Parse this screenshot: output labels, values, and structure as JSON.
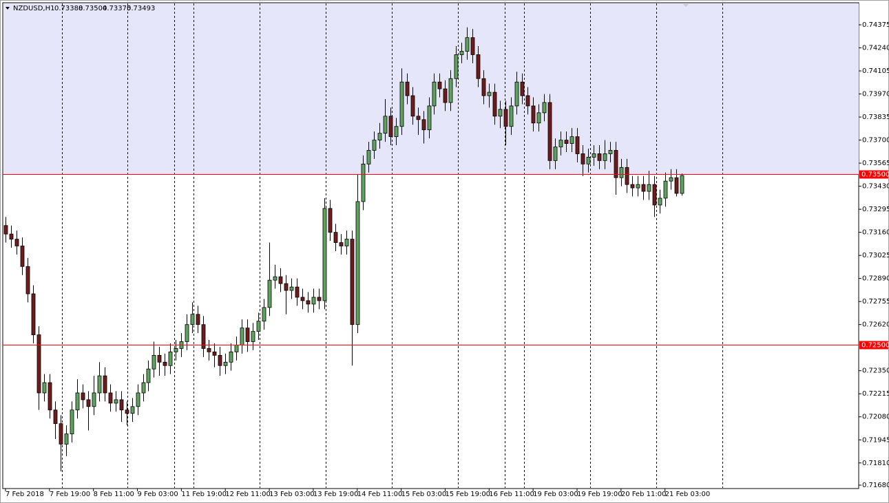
{
  "chart_data": {
    "type": "candlestick",
    "symbol": "NZDUSD,H1",
    "open": [
      0.732,
      0.7315,
      0.7312,
      0.7308,
      0.7296,
      0.728,
      0.7256,
      0.7222,
      0.7228,
      0.7212,
      0.7204,
      0.7192,
      0.7198,
      0.7212,
      0.7222,
      0.7218,
      0.7214,
      0.7222,
      0.7232,
      0.7222,
      0.7216,
      0.7218,
      0.7212,
      0.721,
      0.7214,
      0.7222,
      0.7228,
      0.7236,
      0.7244,
      0.724,
      0.7238,
      0.7246,
      0.7248,
      0.7252,
      0.7262,
      0.7268,
      0.7262,
      0.7248,
      0.7246,
      0.7244,
      0.7238,
      0.724,
      0.7246,
      0.725,
      0.726,
      0.7252,
      0.7258,
      0.7264,
      0.7272,
      0.7288,
      0.729,
      0.7286,
      0.7282,
      0.7284,
      0.7278,
      0.7276,
      0.7274,
      0.7278,
      0.7276,
      0.733,
      0.7316,
      0.731,
      0.7308,
      0.7312,
      0.7262,
      0.7334,
      0.7356,
      0.7364,
      0.737,
      0.7374,
      0.7384,
      0.7372,
      0.7378,
      0.7404,
      0.7396,
      0.7384,
      0.7382,
      0.7376,
      0.739,
      0.7404,
      0.74,
      0.7392,
      0.7406,
      0.742,
      0.7422,
      0.743,
      0.742,
      0.7406,
      0.7396,
      0.7398,
      0.7384,
      0.7388,
      0.7378,
      0.739,
      0.7404,
      0.7396,
      0.739,
      0.738,
      0.7386,
      0.7392,
      0.7358,
      0.7366,
      0.737,
      0.7368,
      0.7372,
      0.7362,
      0.7356,
      0.736,
      0.7362,
      0.7358,
      0.7362,
      0.7364,
      0.7348,
      0.7354,
      0.7344,
      0.7342,
      0.7344,
      0.734,
      0.7344,
      0.7332,
      0.7336,
      0.7346,
      0.7348,
      0.73388
    ],
    "high": [
      0.7325,
      0.732,
      0.7317,
      0.7313,
      0.7301,
      0.7285,
      0.7261,
      0.7233,
      0.7233,
      0.7217,
      0.7209,
      0.7203,
      0.7217,
      0.723,
      0.7227,
      0.7223,
      0.7232,
      0.724,
      0.7237,
      0.7227,
      0.7223,
      0.7223,
      0.7217,
      0.7219,
      0.7227,
      0.7233,
      0.7241,
      0.7252,
      0.7249,
      0.7245,
      0.7251,
      0.7253,
      0.7257,
      0.7268,
      0.7275,
      0.7273,
      0.7267,
      0.7253,
      0.7251,
      0.7249,
      0.7245,
      0.7251,
      0.7255,
      0.7265,
      0.7265,
      0.7263,
      0.7269,
      0.7277,
      0.731,
      0.7297,
      0.7295,
      0.7291,
      0.7289,
      0.7289,
      0.7283,
      0.7281,
      0.7283,
      0.7283,
      0.7336,
      0.7335,
      0.7321,
      0.7315,
      0.7317,
      0.7317,
      0.735,
      0.7361,
      0.7369,
      0.7375,
      0.738,
      0.7394,
      0.7389,
      0.7383,
      0.7412,
      0.7409,
      0.7401,
      0.7389,
      0.7387,
      0.7395,
      0.7409,
      0.7409,
      0.7405,
      0.7411,
      0.7425,
      0.7427,
      0.7436,
      0.7435,
      0.7425,
      0.7411,
      0.7403,
      0.7403,
      0.7393,
      0.7393,
      0.7395,
      0.741,
      0.7409,
      0.7401,
      0.7395,
      0.7391,
      0.7397,
      0.7397,
      0.7371,
      0.7375,
      0.7375,
      0.7377,
      0.7377,
      0.7367,
      0.7365,
      0.7367,
      0.7367,
      0.737,
      0.7369,
      0.7369,
      0.7359,
      0.7359,
      0.7349,
      0.7349,
      0.7349,
      0.7352,
      0.7349,
      0.7341,
      0.7351,
      0.7353,
      0.7353,
      0.73504
    ],
    "low": [
      0.731,
      0.7307,
      0.7303,
      0.7291,
      0.7275,
      0.7251,
      0.7212,
      0.7217,
      0.7207,
      0.7195,
      0.7176,
      0.7185,
      0.7193,
      0.7207,
      0.7213,
      0.72,
      0.7209,
      0.7217,
      0.7217,
      0.7211,
      0.7211,
      0.7205,
      0.7203,
      0.7205,
      0.7209,
      0.7217,
      0.7223,
      0.7231,
      0.7232,
      0.7232,
      0.7233,
      0.7241,
      0.7243,
      0.7247,
      0.7257,
      0.7257,
      0.7243,
      0.7241,
      0.7237,
      0.7232,
      0.7233,
      0.7235,
      0.7241,
      0.7245,
      0.7246,
      0.7247,
      0.7253,
      0.7259,
      0.7267,
      0.7283,
      0.7281,
      0.7268,
      0.7277,
      0.7273,
      0.7271,
      0.7269,
      0.7269,
      0.7271,
      0.7271,
      0.7311,
      0.7305,
      0.7303,
      0.7303,
      0.7238,
      0.7257,
      0.7329,
      0.7351,
      0.7359,
      0.7365,
      0.7369,
      0.7367,
      0.7367,
      0.7373,
      0.7391,
      0.7379,
      0.7373,
      0.7368,
      0.7371,
      0.7385,
      0.7395,
      0.7387,
      0.7387,
      0.7401,
      0.7415,
      0.7417,
      0.7415,
      0.7401,
      0.7391,
      0.7389,
      0.7379,
      0.7377,
      0.7367,
      0.7373,
      0.7385,
      0.7391,
      0.7385,
      0.7375,
      0.7375,
      0.7381,
      0.7353,
      0.7353,
      0.7361,
      0.7363,
      0.7363,
      0.7357,
      0.7349,
      0.7351,
      0.7355,
      0.7353,
      0.7353,
      0.7357,
      0.7338,
      0.7343,
      0.7339,
      0.7337,
      0.7337,
      0.7335,
      0.7335,
      0.7325,
      0.7327,
      0.7331,
      0.7341,
      0.7337,
      0.73375
    ],
    "close": [
      0.7315,
      0.7312,
      0.7308,
      0.7296,
      0.728,
      0.7256,
      0.7222,
      0.7228,
      0.7212,
      0.7204,
      0.7192,
      0.7198,
      0.7212,
      0.7222,
      0.7218,
      0.7214,
      0.7222,
      0.7232,
      0.7222,
      0.7216,
      0.7218,
      0.7212,
      0.721,
      0.7214,
      0.7222,
      0.7228,
      0.7236,
      0.7244,
      0.724,
      0.7238,
      0.7246,
      0.7248,
      0.7252,
      0.7262,
      0.7268,
      0.7262,
      0.7248,
      0.7246,
      0.7244,
      0.7238,
      0.724,
      0.7246,
      0.725,
      0.726,
      0.7252,
      0.7258,
      0.7264,
      0.7272,
      0.7288,
      0.729,
      0.7286,
      0.7282,
      0.7284,
      0.7278,
      0.7276,
      0.7274,
      0.7278,
      0.7276,
      0.733,
      0.7316,
      0.731,
      0.7308,
      0.7312,
      0.7262,
      0.7334,
      0.7356,
      0.7364,
      0.737,
      0.7374,
      0.7384,
      0.7372,
      0.7378,
      0.7404,
      0.7396,
      0.7384,
      0.7382,
      0.7376,
      0.739,
      0.7404,
      0.74,
      0.7392,
      0.7406,
      0.742,
      0.7422,
      0.743,
      0.742,
      0.7406,
      0.7396,
      0.7398,
      0.7384,
      0.7388,
      0.7378,
      0.739,
      0.7404,
      0.7396,
      0.739,
      0.738,
      0.7386,
      0.7392,
      0.7358,
      0.7366,
      0.737,
      0.7368,
      0.7372,
      0.7362,
      0.7356,
      0.736,
      0.7362,
      0.7358,
      0.7362,
      0.7364,
      0.7348,
      0.7354,
      0.7344,
      0.7342,
      0.7344,
      0.734,
      0.7344,
      0.7332,
      0.7336,
      0.7346,
      0.7348,
      0.73388,
      0.73493
    ],
    "up_color": "#5fa35f",
    "down_color": "#6e1c1c",
    "xlim": [
      -0.5,
      155.25
    ],
    "xticks": [
      {
        "value": 0,
        "label": "7 Feb 2018"
      },
      {
        "value": 8,
        "label": "7 Feb 19:00"
      },
      {
        "value": 16,
        "label": "8 Feb 11:00"
      },
      {
        "value": 24,
        "label": "9 Feb 03:00"
      },
      {
        "value": 32,
        "label": "11 Feb 19:00"
      },
      {
        "value": 40,
        "label": "12 Feb 11:00"
      },
      {
        "value": 48,
        "label": "13 Feb 03:00"
      },
      {
        "value": 56,
        "label": "13 Feb 19:00"
      },
      {
        "value": 64,
        "label": "14 Feb 11:00"
      },
      {
        "value": 72,
        "label": "15 Feb 03:00"
      },
      {
        "value": 80,
        "label": "15 Feb 19:00"
      },
      {
        "value": 88,
        "label": "16 Feb 11:00"
      },
      {
        "value": 96,
        "label": "19 Feb 03:00"
      },
      {
        "value": 104,
        "label": "19 Feb 19:00"
      },
      {
        "value": 112,
        "label": "20 Feb 11:00"
      },
      {
        "value": 120,
        "label": "21 Feb 03:00"
      }
    ],
    "ylim": [
      0.7166,
      0.745
    ],
    "yticks": [
      0.74375,
      {
        "value": 0.7424,
        "label": "0.74240"
      },
      0.74105,
      {
        "value": 0.7397,
        "label": "0.73970"
      },
      0.73835,
      {
        "value": 0.737,
        "label": "0.73700"
      },
      0.73565,
      {
        "value": 0.7343,
        "label": "0.73430"
      },
      0.73295,
      {
        "value": 0.7316,
        "label": "0.73160"
      },
      0.73025,
      {
        "value": 0.7289,
        "label": "0.72890"
      },
      0.72755,
      {
        "value": 0.7262,
        "label": "0.72620"
      },
      {
        "value": 0.7235,
        "label": "0.72350"
      },
      0.72215,
      {
        "value": 0.7208,
        "label": "0.72080"
      },
      0.71945,
      {
        "value": 0.7181,
        "label": "0.71810"
      },
      {
        "value": 0.7168,
        "label": "0.71680"
      }
    ],
    "levels": [
      {
        "value": 0.735,
        "label": "0.73500"
      },
      {
        "value": 0.725,
        "label": "0.72500"
      }
    ],
    "level_color": "#ff0000",
    "zone_color": "#e6e6fa"
  }
}
